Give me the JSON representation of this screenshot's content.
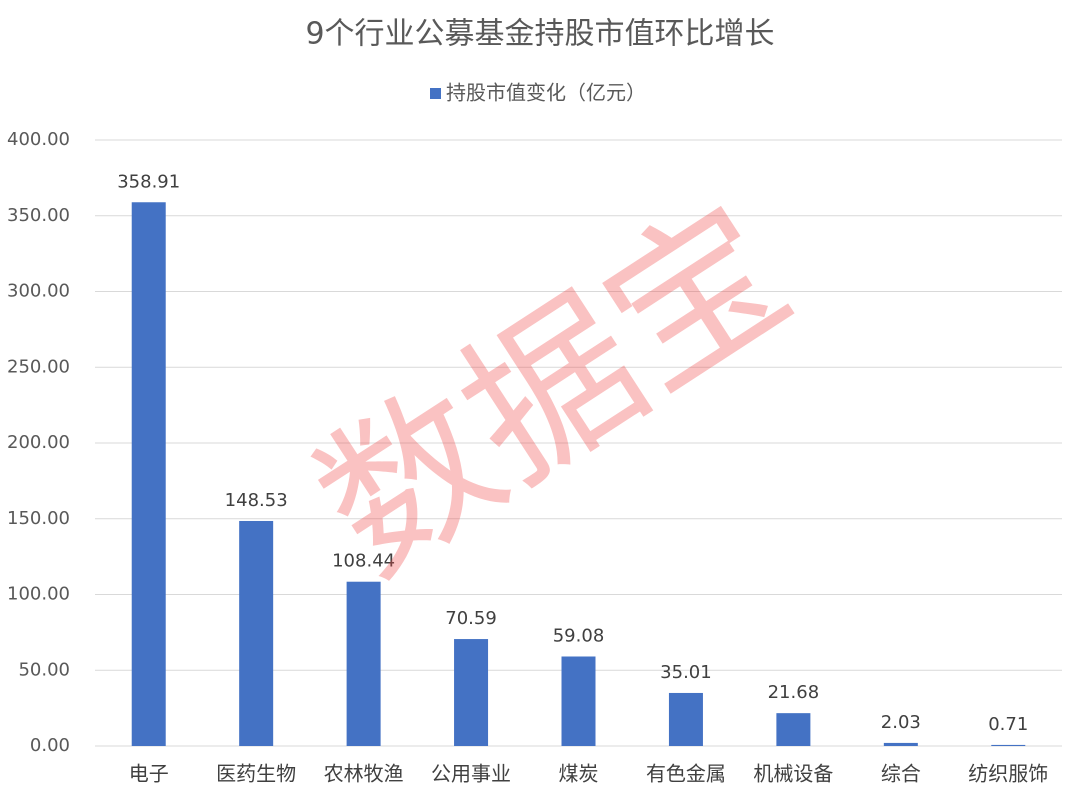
{
  "chart_data": {
    "type": "bar",
    "title": "9个行业公募基金持股市值环比增长",
    "watermark": "数据宝",
    "categories": [
      "电子",
      "医药生物",
      "农林牧渔",
      "公用事业",
      "煤炭",
      "有色金属",
      "机械设备",
      "综合",
      "纺织服饰"
    ],
    "series": [
      {
        "name": "持股市值变化（亿元）",
        "color": "#4472c4",
        "values": [
          358.91,
          148.53,
          108.44,
          70.59,
          59.08,
          35.01,
          21.68,
          2.03,
          0.71
        ]
      }
    ],
    "ylim": [
      0,
      400
    ],
    "yticks": [
      {
        "value": 0,
        "label": "0.00"
      },
      {
        "value": 50,
        "label": "50.00"
      },
      {
        "value": 100,
        "label": "100.00"
      },
      {
        "value": 150,
        "label": "150.00"
      },
      {
        "value": 200,
        "label": "200.00"
      },
      {
        "value": 250,
        "label": "250.00"
      },
      {
        "value": 300,
        "label": "300.00"
      },
      {
        "value": 350,
        "label": "350.00"
      },
      {
        "value": 400,
        "label": "400.00"
      }
    ],
    "grid": true,
    "legend": "top"
  }
}
